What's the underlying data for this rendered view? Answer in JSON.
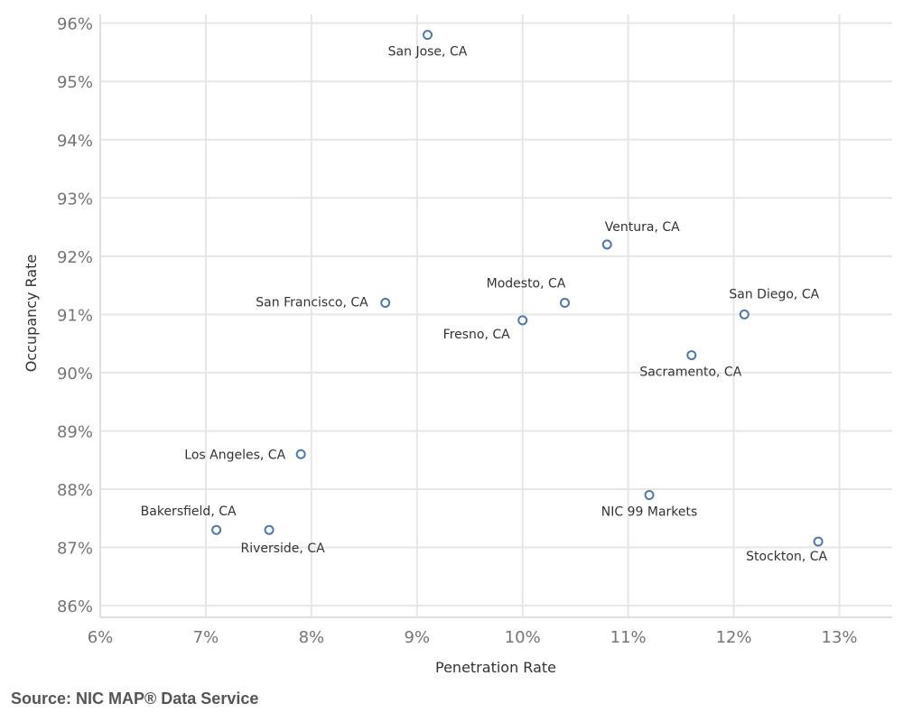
{
  "chart_data": {
    "type": "scatter",
    "xlabel": "Penetration Rate",
    "ylabel": "Occupancy Rate",
    "xlim": [
      6,
      13.5
    ],
    "ylim": [
      85.8,
      96.15
    ],
    "x_ticks": [
      6,
      7,
      8,
      9,
      10,
      11,
      12,
      13
    ],
    "x_tick_labels": [
      "6%",
      "7%",
      "8%",
      "9%",
      "10%",
      "11%",
      "12%",
      "13%"
    ],
    "y_ticks": [
      86,
      87,
      88,
      89,
      90,
      91,
      92,
      93,
      94,
      95,
      96
    ],
    "y_tick_labels": [
      "86%",
      "87%",
      "88%",
      "89%",
      "90%",
      "91%",
      "92%",
      "93%",
      "94%",
      "95%",
      "96%"
    ],
    "grid": true,
    "marker_color": "#4e79a7",
    "points": [
      {
        "label": "San Jose, CA",
        "x": 9.1,
        "y": 95.8
      },
      {
        "label": "Ventura, CA",
        "x": 10.8,
        "y": 92.2
      },
      {
        "label": "San Francisco, CA",
        "x": 8.7,
        "y": 91.2
      },
      {
        "label": "Modesto, CA",
        "x": 10.4,
        "y": 91.2
      },
      {
        "label": "Fresno, CA",
        "x": 10.0,
        "y": 90.9
      },
      {
        "label": "San Diego, CA",
        "x": 12.1,
        "y": 91.0
      },
      {
        "label": "Sacramento, CA",
        "x": 11.6,
        "y": 90.3
      },
      {
        "label": "Los Angeles, CA",
        "x": 7.9,
        "y": 88.6
      },
      {
        "label": "NIC 99 Markets",
        "x": 11.2,
        "y": 87.9
      },
      {
        "label": "Bakersfield, CA",
        "x": 7.1,
        "y": 87.3
      },
      {
        "label": "Riverside, CA",
        "x": 7.6,
        "y": 87.3
      },
      {
        "label": "Stockton, CA",
        "x": 12.8,
        "y": 87.1
      }
    ]
  },
  "source": "Source: NIC MAP® Data Service"
}
